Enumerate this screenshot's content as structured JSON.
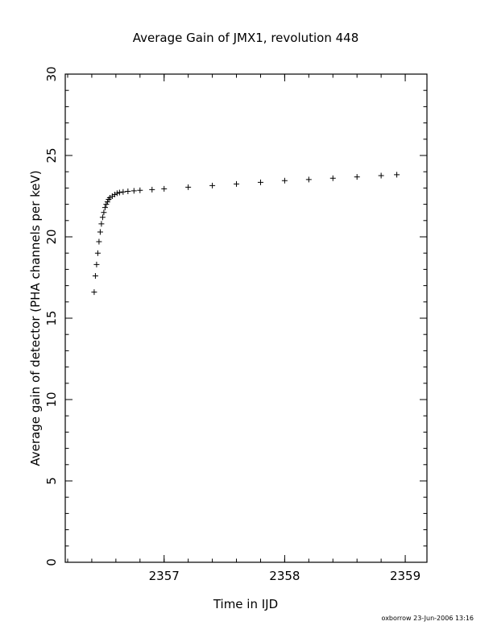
{
  "chart_data": {
    "type": "scatter",
    "title": "Average Gain of JMX1, revolution 448",
    "xlabel": "Time in IJD",
    "ylabel": "Average gain of detector (PHA channels per keV)",
    "xlim": [
      2356.18,
      2359.18
    ],
    "ylim": [
      0,
      30
    ],
    "x_ticks": [
      2357,
      2358,
      2359
    ],
    "x_tick_labels": [
      "2357",
      "2358",
      "2359"
    ],
    "y_ticks": [
      0,
      5,
      10,
      15,
      20,
      25,
      30
    ],
    "y_tick_labels": [
      "0",
      "5",
      "10",
      "15",
      "20",
      "25",
      "30"
    ],
    "x_minor_step": 0.2,
    "y_minor_step": 1,
    "grid": false,
    "legend": "none",
    "marker": "plus",
    "color": "#000000",
    "series": [
      {
        "x": [
          2356.42,
          2356.43,
          2356.44,
          2356.45,
          2356.46,
          2356.47,
          2356.48,
          2356.49,
          2356.5,
          2356.51,
          2356.52,
          2356.53,
          2356.54,
          2356.55,
          2356.57,
          2356.59,
          2356.61,
          2356.63,
          2356.66,
          2356.7,
          2356.75,
          2356.8,
          2356.9,
          2357.0,
          2357.2,
          2357.4,
          2357.6,
          2357.8,
          2358.0,
          2358.2,
          2358.4,
          2358.6,
          2358.8,
          2358.93
        ],
        "y": [
          16.6,
          17.6,
          18.3,
          19.0,
          19.7,
          20.3,
          20.8,
          21.2,
          21.5,
          21.8,
          22.0,
          22.15,
          22.3,
          22.4,
          22.5,
          22.6,
          22.68,
          22.72,
          22.76,
          22.8,
          22.83,
          22.86,
          22.9,
          22.95,
          23.05,
          23.15,
          23.25,
          23.35,
          23.45,
          23.52,
          23.6,
          23.68,
          23.76,
          23.82
        ]
      }
    ]
  },
  "footer": "oxborrow 23-Jun-2006 13:16"
}
